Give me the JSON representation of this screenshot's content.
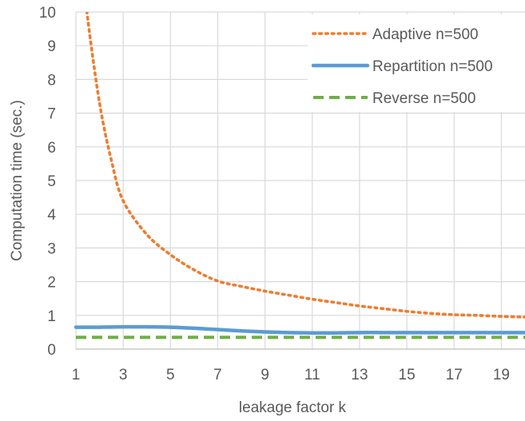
{
  "chart_data": {
    "type": "line",
    "title": "",
    "xlabel": "leakage factor k",
    "ylabel": "Computation time (sec.)",
    "xlim": [
      1,
      20
    ],
    "ylim": [
      0,
      10
    ],
    "x_ticks": [
      1,
      3,
      5,
      7,
      9,
      11,
      13,
      15,
      17,
      19
    ],
    "y_ticks": [
      0,
      1,
      2,
      3,
      4,
      5,
      6,
      7,
      8,
      9,
      10
    ],
    "grid": true,
    "legend_position": "top-right",
    "series": [
      {
        "name": "Adaptive n=500",
        "color": "#ED7D31",
        "style": "dotted",
        "x": [
          1.25,
          1.5,
          2,
          2.5,
          3,
          4,
          5,
          6,
          7,
          8,
          9,
          10,
          11,
          12,
          13,
          14,
          15,
          16,
          17,
          18,
          19,
          20
        ],
        "y": [
          11.5,
          9.8,
          7.3,
          5.6,
          4.4,
          3.4,
          2.8,
          2.35,
          2.02,
          1.86,
          1.72,
          1.6,
          1.48,
          1.38,
          1.28,
          1.2,
          1.12,
          1.06,
          1.02,
          1.0,
          0.97,
          0.95
        ]
      },
      {
        "name": "Repartition n=500",
        "color": "#5B9BD5",
        "style": "solid",
        "x": [
          1,
          2,
          3,
          4,
          5,
          6,
          7,
          8,
          9,
          10,
          11,
          12,
          13,
          14,
          15,
          16,
          17,
          18,
          19,
          20
        ],
        "y": [
          0.65,
          0.65,
          0.66,
          0.66,
          0.65,
          0.62,
          0.58,
          0.54,
          0.51,
          0.49,
          0.48,
          0.48,
          0.49,
          0.49,
          0.49,
          0.49,
          0.49,
          0.49,
          0.49,
          0.49
        ]
      },
      {
        "name": "Reverse n=500",
        "color": "#70AD47",
        "style": "dashed",
        "x": [
          1,
          20
        ],
        "y": [
          0.35,
          0.35
        ]
      }
    ]
  }
}
